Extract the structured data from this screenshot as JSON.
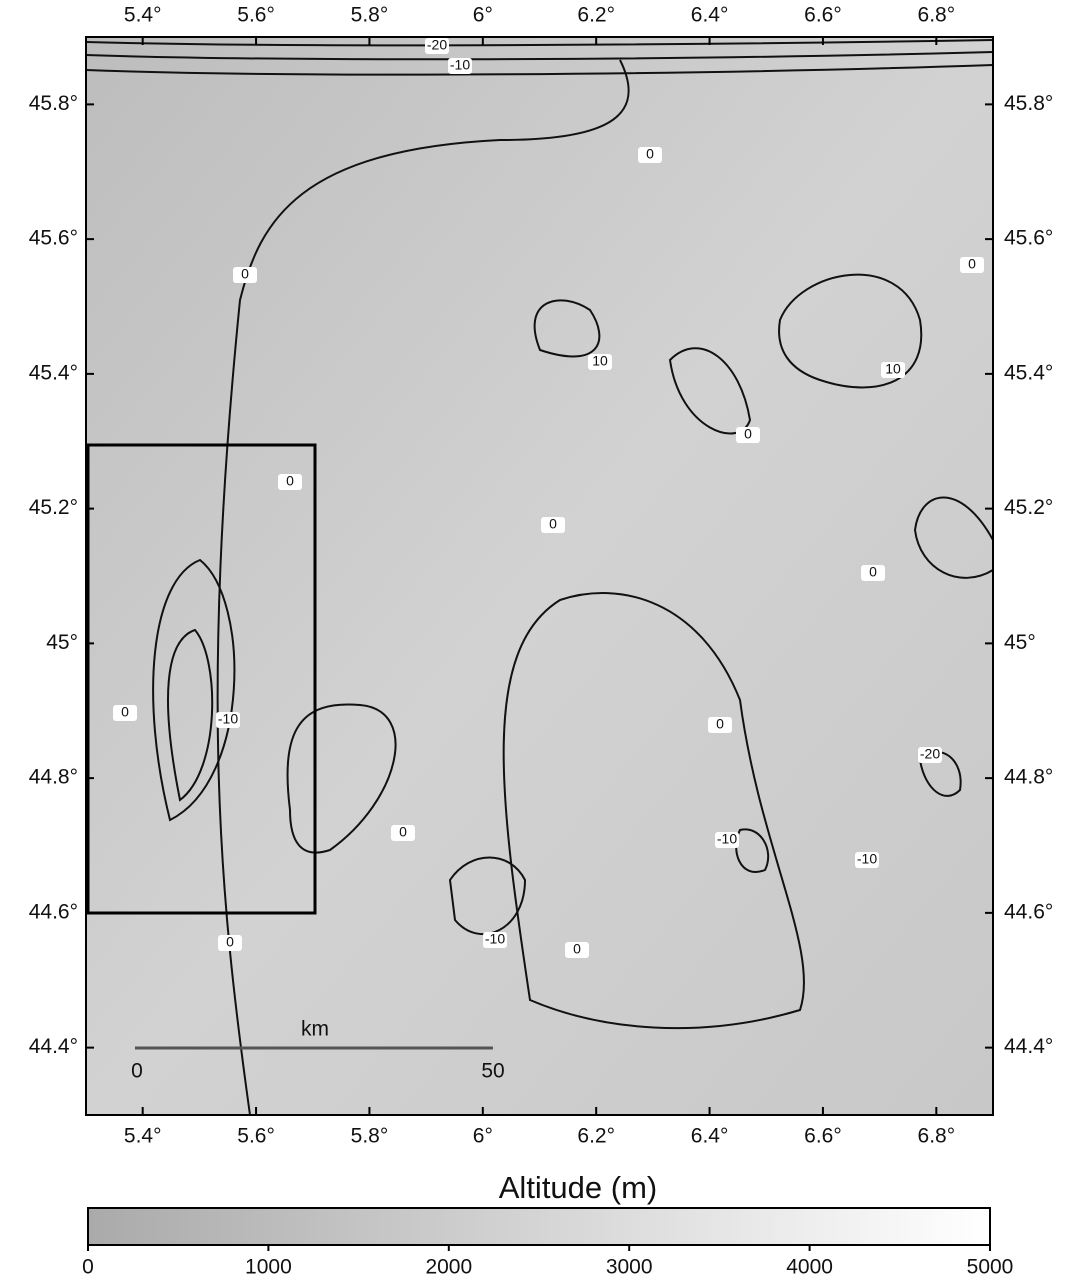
{
  "map": {
    "xlim": [
      5.3,
      6.9
    ],
    "ylim": [
      44.3,
      45.9
    ],
    "xticks": [
      {
        "value": 5.4,
        "label": "5.4°"
      },
      {
        "value": 5.6,
        "label": "5.6°"
      },
      {
        "value": 5.8,
        "label": "5.8°"
      },
      {
        "value": 6,
        "label": "6°"
      },
      {
        "value": 6.2,
        "label": "6.2°"
      },
      {
        "value": 6.4,
        "label": "6.4°"
      },
      {
        "value": 6.6,
        "label": "6.6°"
      },
      {
        "value": 6.8,
        "label": "6.8°"
      }
    ],
    "yticks": [
      {
        "value": 44.4,
        "label": "44.4°"
      },
      {
        "value": 44.6,
        "label": "44.6°"
      },
      {
        "value": 44.8,
        "label": "44.8°"
      },
      {
        "value": 45,
        "label": "45°"
      },
      {
        "value": 45.2,
        "label": "45.2°"
      },
      {
        "value": 45.4,
        "label": "45.4°"
      },
      {
        "value": 45.6,
        "label": "45.6°"
      },
      {
        "value": 45.8,
        "label": "45.8°"
      }
    ],
    "contour_labels": [
      "-20",
      "-10",
      "0",
      "0",
      "0",
      "10",
      "10",
      "0",
      "0",
      "0",
      "0",
      "0",
      "-10",
      "0",
      "-20",
      "0",
      "-10",
      "-10",
      "0",
      "-10",
      "0"
    ],
    "scale_bar": {
      "unit": "km",
      "start": "0",
      "end": "50"
    }
  },
  "colorbar": {
    "title": "Altitude (m)",
    "lim": [
      0,
      5000
    ],
    "ticks": [
      0,
      1000,
      2000,
      3000,
      4000,
      5000
    ]
  }
}
